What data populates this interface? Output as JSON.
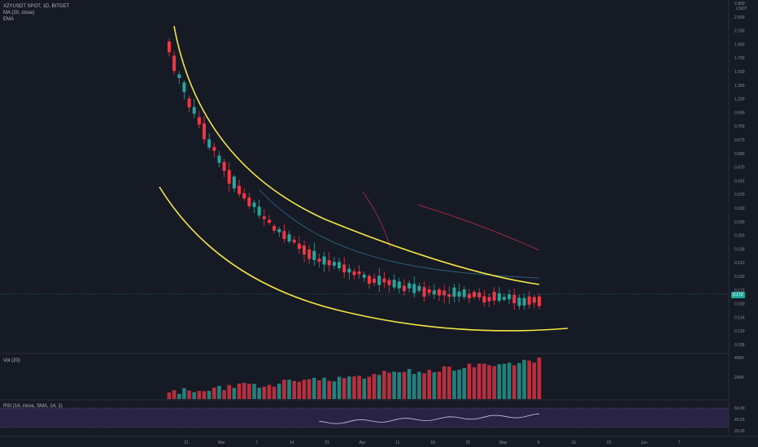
{
  "chart_data": {
    "type": "candlestick",
    "symbol_line": "XZYUSDT SPOT, 1D, BITGET",
    "indicators": [
      "MA (20, close)",
      "EMA"
    ],
    "currency_badge": "USDT",
    "last_price_label": "0.172",
    "price_axis_ticks": [
      "2.800",
      "2.500",
      "2.200",
      "1.900",
      "1.700",
      "1.500",
      "1.350",
      "1.200",
      "0.990",
      "0.750",
      "0.670",
      "0.580",
      "0.470",
      "0.415",
      "0.370",
      "0.330",
      "0.290",
      "0.250",
      "0.230",
      "0.210",
      "0.190",
      "0.172",
      "0.150",
      "0.134",
      "0.120",
      "0.108"
    ],
    "time_axis_labels": [
      "21",
      "Mar",
      "7",
      "14",
      "21",
      "Apr",
      "11",
      "18",
      "25",
      "May",
      "9",
      "16",
      "23",
      "Jun",
      "7"
    ],
    "volume_pane": {
      "label": "Vol (20)",
      "ticks": [
        "400K",
        "200K"
      ]
    },
    "rsi_pane": {
      "label": "RSI (14, close, SMA, 14, 2)",
      "ticks": [
        "60.00",
        "40.00",
        "20.00"
      ]
    },
    "colors": {
      "up": "#26a69a",
      "down": "#f23645",
      "trendline": "#f5e642",
      "ma": "#2a5f7a",
      "ema": "#9c2b3d",
      "rsi_band": "#3b2e63"
    }
  }
}
